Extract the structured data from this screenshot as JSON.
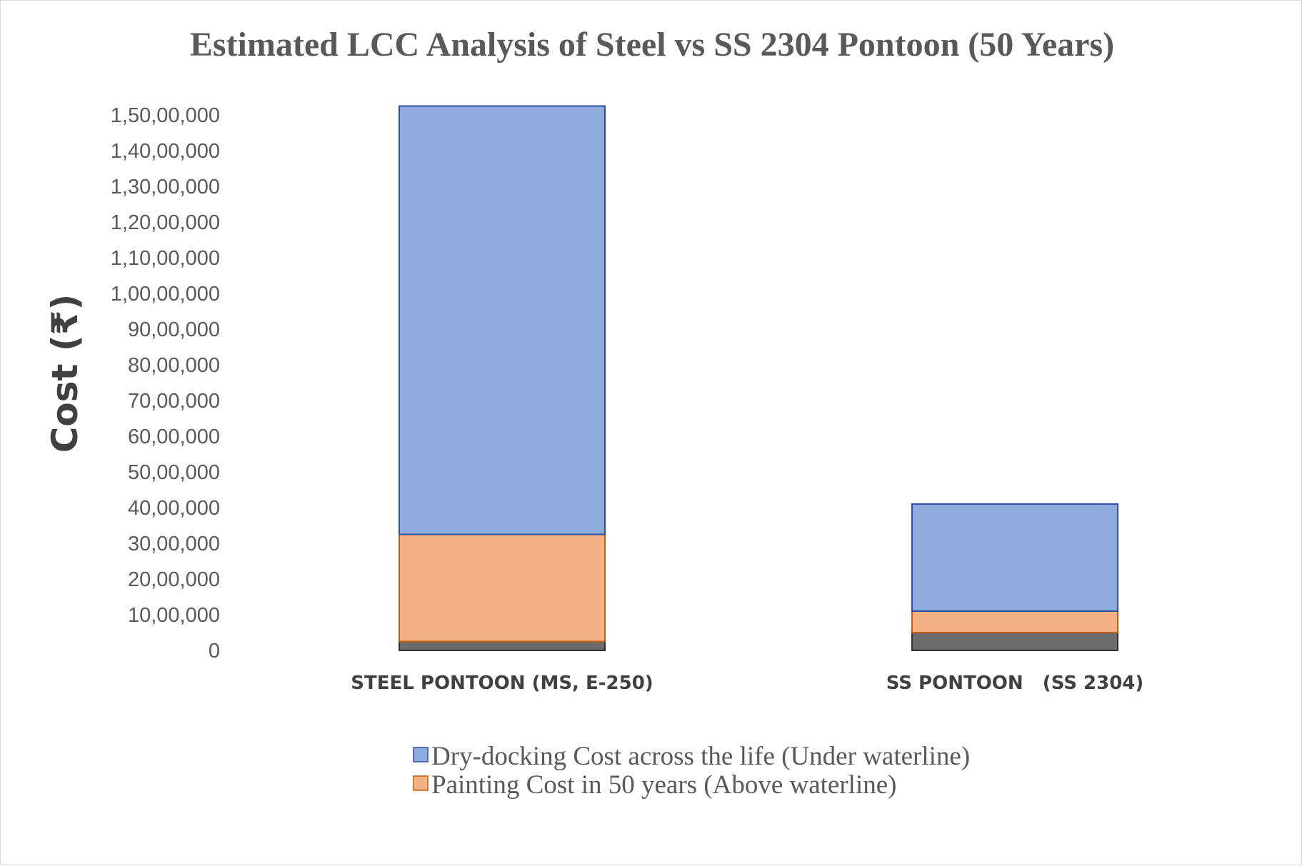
{
  "chart_data": {
    "type": "stacked-bar",
    "title": "Estimated LCC Analysis of Steel vs SS 2304 Pontoon (50 Years)",
    "xlabel": "",
    "ylabel": "Cost (₹)",
    "ylim": [
      0,
      15000000
    ],
    "ytick_values": [
      0,
      1000000,
      2000000,
      3000000,
      4000000,
      5000000,
      6000000,
      7000000,
      8000000,
      9000000,
      10000000,
      11000000,
      12000000,
      13000000,
      14000000,
      15000000
    ],
    "ytick_labels": [
      "0",
      "10,00,000",
      "20,00,000",
      "30,00,000",
      "40,00,000",
      "50,00,000",
      "60,00,000",
      "70,00,000",
      "80,00,000",
      "90,00,000",
      "1,00,00,000",
      "1,10,00,000",
      "1,20,00,000",
      "1,30,00,000",
      "1,40,00,000",
      "1,50,00,000"
    ],
    "categories": [
      "STEEL PONTOON (MS, E-250)",
      "SS PONTOON   (SS 2304)"
    ],
    "series": [
      {
        "name": "",
        "color": "#6b6b6b",
        "stroke": "#2f2f2f",
        "in_legend": false,
        "values": [
          250000,
          500000
        ]
      },
      {
        "name": "Painting Cost in 50 years (Above waterline)",
        "color": "#f4b183",
        "stroke": "#c55a11",
        "in_legend": true,
        "values": [
          3000000,
          600000
        ]
      },
      {
        "name": "Dry-docking Cost across the life (Under waterline)",
        "color": "#8faadc",
        "stroke": "#2f4f9f",
        "in_legend": true,
        "values": [
          12000000,
          3000000
        ]
      }
    ],
    "legend": [
      {
        "label": "Dry-docking Cost across the life (Under waterline)",
        "color": "#8faadc",
        "stroke": "#2f4f9f"
      },
      {
        "label": "Painting Cost in 50 years (Above waterline)",
        "color": "#f4b183",
        "stroke": "#c55a11"
      }
    ],
    "legend_position": "bottom",
    "grid": false
  }
}
